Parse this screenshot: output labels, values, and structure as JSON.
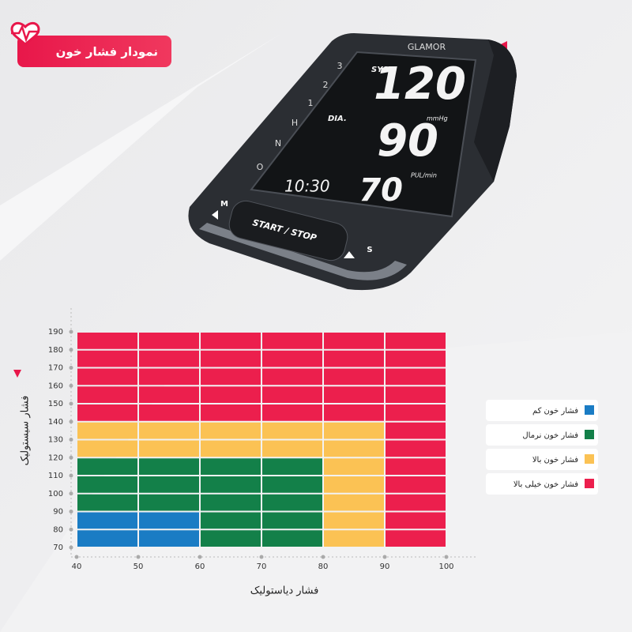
{
  "header": {
    "title": "نمودار فشار خون"
  },
  "device": {
    "brand": "GLAMOR",
    "sys_label": "SYS.",
    "sys": "120",
    "unit": "mmHg",
    "dia_label": "DIA.",
    "dia": "90",
    "pulse_label": "PUL/min",
    "pulse": "70",
    "time": "10:30",
    "button": "START / STOP",
    "left_button": "M",
    "right_button": "S",
    "scale": [
      "3",
      "2",
      "1",
      "H",
      "N",
      "O"
    ]
  },
  "chart_data": {
    "type": "heatmap",
    "x_label": "فشار دیاستولیک",
    "y_label": "فشار سیستولیک",
    "xlim": [
      40,
      100
    ],
    "xticks": [
      40,
      50,
      60,
      70,
      80,
      90,
      100
    ],
    "ylim": [
      70,
      190
    ],
    "yticks": [
      70,
      80,
      90,
      100,
      110,
      120,
      130,
      140,
      150,
      160,
      170,
      180,
      190
    ],
    "x_bins": [
      40,
      50,
      60,
      70,
      80,
      90,
      100
    ],
    "y_bins": [
      70,
      80,
      90,
      100,
      110,
      120,
      130,
      140,
      150,
      160,
      170,
      180,
      190
    ],
    "legend": [
      {
        "name": "فشار خون کم",
        "color": "#1a7cc4"
      },
      {
        "name": "فشار خون نرمال",
        "color": "#138049"
      },
      {
        "name": "فشار خون بالا",
        "color": "#fbc254"
      },
      {
        "name": "فشار خون خیلی بالا",
        "color": "#ec1f4d"
      }
    ],
    "z": [
      [
        0,
        0,
        1,
        1,
        2,
        3
      ],
      [
        0,
        0,
        1,
        1,
        2,
        3
      ],
      [
        1,
        1,
        1,
        1,
        2,
        3
      ],
      [
        1,
        1,
        1,
        1,
        2,
        3
      ],
      [
        1,
        1,
        1,
        1,
        2,
        3
      ],
      [
        2,
        2,
        2,
        2,
        2,
        3
      ],
      [
        2,
        2,
        2,
        2,
        2,
        3
      ],
      [
        3,
        3,
        3,
        3,
        3,
        3
      ],
      [
        3,
        3,
        3,
        3,
        3,
        3
      ],
      [
        3,
        3,
        3,
        3,
        3,
        3
      ],
      [
        3,
        3,
        3,
        3,
        3,
        3
      ],
      [
        3,
        3,
        3,
        3,
        3,
        3
      ]
    ]
  }
}
